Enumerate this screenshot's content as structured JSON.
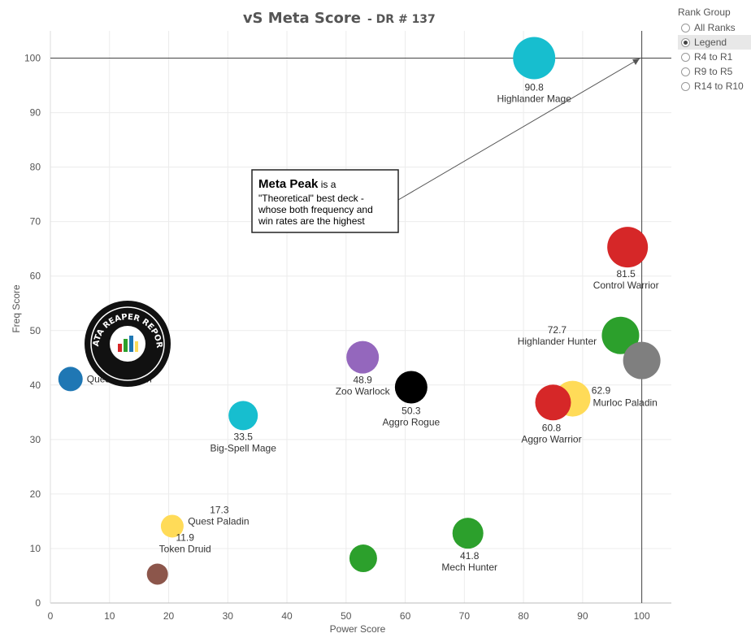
{
  "title": "vS Meta Score",
  "subtitle": "- DR # 137",
  "legend": {
    "title": "Rank Group",
    "options": [
      "All Ranks",
      "Legend",
      "R4 to R1",
      "R9 to R5",
      "R14 to R10"
    ],
    "selected": "Legend"
  },
  "annotation": {
    "bold": "Meta Peak",
    "lines": [
      " is a",
      "\"Theoretical\" best deck -",
      "whose both frequency and",
      "win rates are the highest"
    ]
  },
  "logo_text": "DATA REAPER REPORT",
  "chart_data": {
    "type": "scatter",
    "title": "vS Meta Score - DR # 137",
    "xlabel": "Power Score",
    "ylabel": "Freq Score",
    "xlim": [
      0,
      105
    ],
    "ylim": [
      0,
      105
    ],
    "xticks": [
      0,
      10,
      20,
      30,
      40,
      50,
      60,
      70,
      80,
      90,
      100
    ],
    "yticks": [
      0,
      10,
      20,
      30,
      40,
      50,
      60,
      70,
      80,
      90,
      100
    ],
    "grid": true,
    "reference_lines": {
      "x": 100,
      "y": 100
    },
    "points": [
      {
        "name": "Highlander Mage",
        "x": 81.8,
        "y": 100,
        "score": "90.8",
        "color": "#17becf",
        "r": 26
      },
      {
        "name": "Control Warrior",
        "x": 97.6,
        "y": 65.3,
        "score": "81.5",
        "color": "#d62728",
        "r": 25
      },
      {
        "name": "Highlander Hunter",
        "x": 96.4,
        "y": 49.1,
        "score": "72.7",
        "color": "#2ca02c",
        "r": 23
      },
      {
        "name": "",
        "x": 100,
        "y": 44.5,
        "score": "",
        "color": "#7f7f7f",
        "r": 23
      },
      {
        "name": "Murloc Paladin",
        "x": 88.3,
        "y": 37.5,
        "score": "62.9",
        "color": "#ffdb58",
        "r": 22
      },
      {
        "name": "Aggro Warrior",
        "x": 85.0,
        "y": 36.8,
        "score": "60.8",
        "color": "#d62728",
        "r": 22
      },
      {
        "name": "Aggro Rogue",
        "x": 61.0,
        "y": 39.6,
        "score": "50.3",
        "color": "#000000",
        "r": 20
      },
      {
        "name": "Zoo Warlock",
        "x": 52.8,
        "y": 45.1,
        "score": "48.9",
        "color": "#9467bd",
        "r": 20
      },
      {
        "name": "Big-Spell Mage",
        "x": 32.6,
        "y": 34.4,
        "score": "33.5",
        "color": "#17becf",
        "r": 18
      },
      {
        "name": "Mech Hunter",
        "x": 70.6,
        "y": 12.8,
        "score": "41.8",
        "color": "#2ca02c",
        "r": 19
      },
      {
        "name": "",
        "x": 52.9,
        "y": 8.2,
        "score": "",
        "color": "#2ca02c",
        "r": 17
      },
      {
        "name": "Quest Paladin",
        "x": 20.6,
        "y": 14.1,
        "score": "17.3",
        "color": "#ffdb58",
        "r": 14
      },
      {
        "name": "Token Druid",
        "x": 18.1,
        "y": 5.3,
        "score": "11.9",
        "color": "#8c564b",
        "r": 13
      },
      {
        "name": "Quest Shaman",
        "x": 3.4,
        "y": 41.1,
        "score": "",
        "color": "#1f77b4",
        "r": 15
      }
    ]
  }
}
